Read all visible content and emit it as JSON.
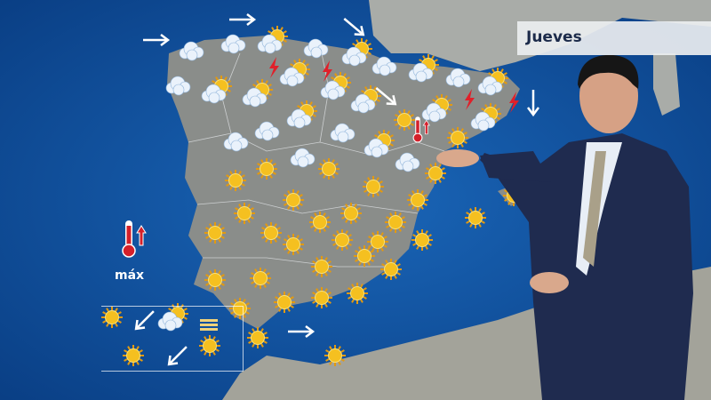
{
  "broadcast": {
    "day_label": "Jueves",
    "max_temp_label": "máx"
  },
  "legend": {
    "thermometer_icon": "thermometer-icon",
    "trend": "rising"
  },
  "icons": {
    "sun": "sun-icon",
    "cloud": "cloud-icon",
    "sun_cloud": "sun-behind-cloud-icon",
    "storm": "lightning-icon",
    "wind_arrow": "wind-arrow-icon",
    "fog": "fog-icon"
  },
  "colors": {
    "sea": "#0d4d9a",
    "land": "#8a8d8a",
    "sun": "#f5c020",
    "storm": "#e0202a",
    "thermometer": "#d4202a",
    "label_bg": "#ebeef0",
    "label_text": "#1c2b4a",
    "suit": "#1f2b4f"
  }
}
